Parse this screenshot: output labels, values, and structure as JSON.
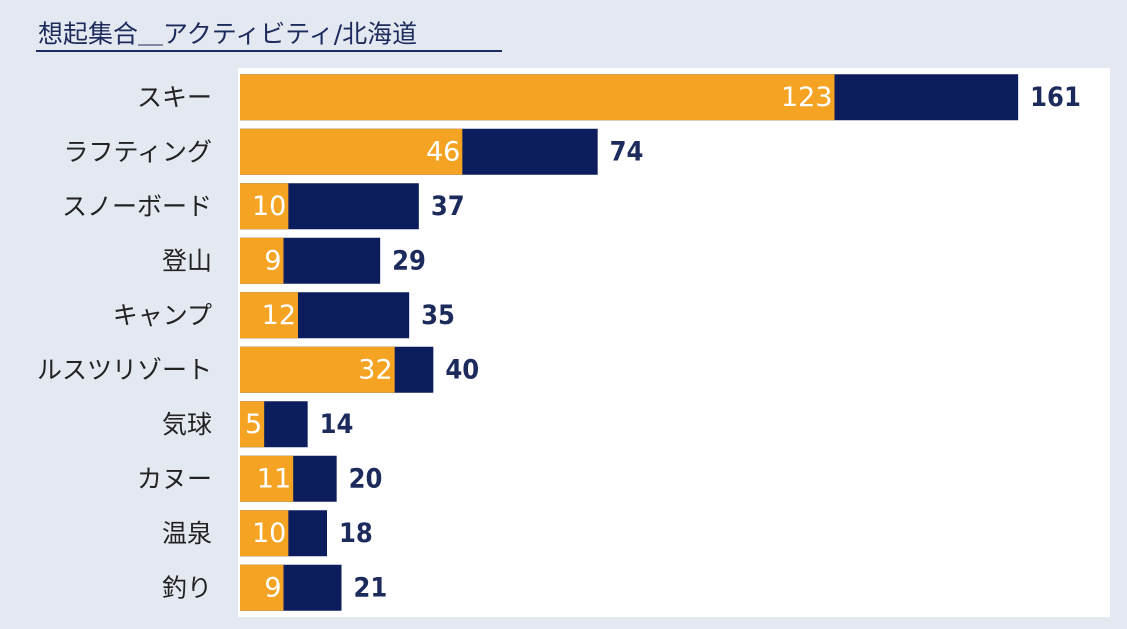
{
  "chart_data": {
    "type": "bar",
    "orientation": "horizontal",
    "overlap": true,
    "title": "想起集合＿アクティビティ/北海道",
    "categories": [
      "スキー",
      "ラフティング",
      "スノーボード",
      "登山",
      "キャンプ",
      "ルスツリゾート",
      "気球",
      "カヌー",
      "温泉",
      "釣り"
    ],
    "series": [
      {
        "color": "#0c1d5e",
        "values": [
          161,
          74,
          37,
          29,
          35,
          40,
          14,
          20,
          18,
          21
        ]
      },
      {
        "color": "#f5a323",
        "values": [
          123,
          46,
          10,
          9,
          12,
          32,
          5,
          11,
          10,
          9
        ]
      }
    ],
    "xlim": [
      0,
      180
    ]
  }
}
